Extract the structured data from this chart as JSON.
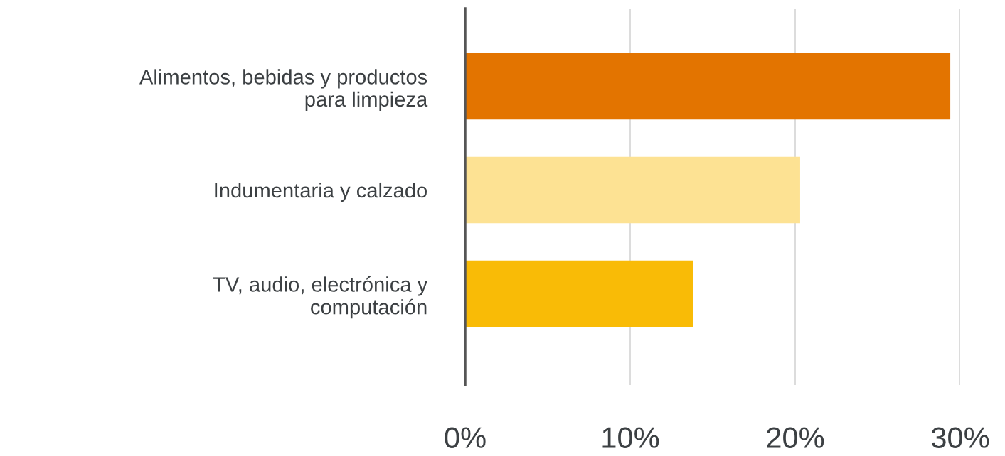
{
  "chart_data": {
    "type": "bar",
    "orientation": "horizontal",
    "categories": [
      "Alimentos, bebidas y productos\npara limpieza",
      "Indumentaria y calzado",
      "TV, audio, electrónica y\ncomputación"
    ],
    "values": [
      29.4,
      20.3,
      13.8
    ],
    "colors": [
      "#e37400",
      "#fde293",
      "#f9bb06"
    ],
    "xlim": [
      0,
      30
    ],
    "xticks": [
      {
        "value": 0,
        "label": "0%"
      },
      {
        "value": 10,
        "label": "10%"
      },
      {
        "value": 20,
        "label": "20%"
      },
      {
        "value": 30,
        "label": "30%"
      }
    ],
    "grid": "x"
  }
}
